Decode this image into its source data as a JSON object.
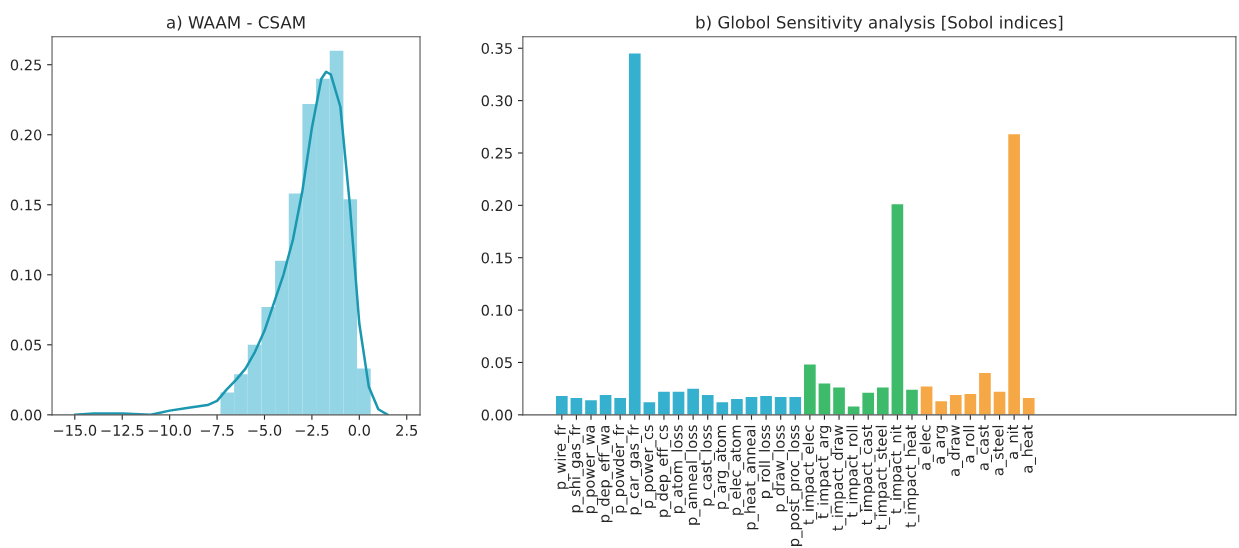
{
  "chart_data": [
    {
      "type": "histogram",
      "title": "a) WAAM - CSAM",
      "bins": [
        -7.32,
        -6.6,
        -5.88,
        -5.16,
        -4.44,
        -3.72,
        -3.0,
        -2.28,
        -1.56,
        -0.84,
        -0.12,
        0.6
      ],
      "values": [
        0.016,
        0.029,
        0.05,
        0.077,
        0.11,
        0.158,
        0.222,
        0.24,
        0.26,
        0.154,
        0.033
      ],
      "color": "#93d5e5",
      "series": [
        {
          "type": "line",
          "color": "#1b98b0",
          "x": [
            -15,
            -14,
            -12.5,
            -11,
            -10,
            -9,
            -8,
            -7.5,
            -7,
            -6.5,
            -6,
            -5.5,
            -5,
            -4.5,
            -4,
            -3.5,
            -3,
            -2.5,
            -2,
            -1.75,
            -1.5,
            -1,
            -0.5,
            0,
            0.5,
            1,
            1.5
          ],
          "values": [
            0,
            0.001,
            0.001,
            0,
            0.003,
            0.005,
            0.007,
            0.01,
            0.018,
            0.025,
            0.033,
            0.045,
            0.06,
            0.08,
            0.1,
            0.125,
            0.16,
            0.205,
            0.24,
            0.245,
            0.243,
            0.22,
            0.15,
            0.065,
            0.02,
            0.004,
            0
          ]
        }
      ],
      "xlim": [
        -16.2,
        3.2
      ],
      "xticks": [
        {
          "value": -15,
          "label": "−15.0"
        },
        {
          "value": -12.5,
          "label": "−12.5"
        },
        {
          "value": -10,
          "label": "−10.0"
        },
        {
          "value": -7.5,
          "label": "−7.5"
        },
        {
          "value": -5,
          "label": "−5.0"
        },
        {
          "value": -2.5,
          "label": "−2.5"
        },
        {
          "value": 0,
          "label": "0.0"
        },
        {
          "value": 2.5,
          "label": "2.5"
        }
      ],
      "ylim": [
        0,
        0.27
      ],
      "yticks": [
        {
          "value": 0,
          "label": "0.00"
        },
        {
          "value": 0.05,
          "label": "0.05"
        },
        {
          "value": 0.1,
          "label": "0.10"
        },
        {
          "value": 0.15,
          "label": "0.15"
        },
        {
          "value": 0.2,
          "label": "0.20"
        },
        {
          "value": 0.25,
          "label": "0.25"
        }
      ],
      "grid": false
    },
    {
      "type": "bar",
      "title": "b) Globol Sensitivity analysis [Sobol indices]",
      "categories": [
        "p_wire_fr",
        "p_shi_gas_fr",
        "p_power_wa",
        "p_dep_eff_wa",
        "p_powder_fr",
        "p_car_gas_fr",
        "p_power_cs",
        "p_dep_eff_cs",
        "p_atom_loss",
        "p_anneal_loss",
        "p_cast_loss",
        "p_arg_atom",
        "p_elec_atom",
        "p_heat_anneal",
        "p_roll_loss",
        "p_draw_loss",
        "p_post_proc_loss",
        "t_impact_elec",
        "t_impact_arg",
        "t_impact_draw",
        "t_impact_roll",
        "t_impact_cast",
        "t_impact_steel",
        "t_impact_nit",
        "t_impact_heat",
        "a_elec",
        "a_arg",
        "a_draw",
        "a_roll",
        "a_cast",
        "a_steel",
        "a_nit",
        "a_heat"
      ],
      "values": [
        0.018,
        0.016,
        0.014,
        0.019,
        0.016,
        0.345,
        0.012,
        0.022,
        0.022,
        0.025,
        0.019,
        0.012,
        0.015,
        0.017,
        0.018,
        0.017,
        0.017,
        0.048,
        0.03,
        0.026,
        0.008,
        0.021,
        0.026,
        0.201,
        0.024,
        0.027,
        0.013,
        0.019,
        0.02,
        0.04,
        0.022,
        0.268,
        0.016
      ],
      "colors": [
        "#35b0cf",
        "#35b0cf",
        "#35b0cf",
        "#35b0cf",
        "#35b0cf",
        "#35b0cf",
        "#35b0cf",
        "#35b0cf",
        "#35b0cf",
        "#35b0cf",
        "#35b0cf",
        "#35b0cf",
        "#35b0cf",
        "#35b0cf",
        "#35b0cf",
        "#35b0cf",
        "#35b0cf",
        "#3dbb6a",
        "#3dbb6a",
        "#3dbb6a",
        "#3dbb6a",
        "#3dbb6a",
        "#3dbb6a",
        "#3dbb6a",
        "#3dbb6a",
        "#f5a845",
        "#f5a845",
        "#f5a845",
        "#f5a845",
        "#f5a845",
        "#f5a845",
        "#f5a845",
        "#f5a845"
      ],
      "ylim": [
        0,
        0.361
      ],
      "yticks": [
        {
          "value": 0,
          "label": "0.00"
        },
        {
          "value": 0.05,
          "label": "0.05"
        },
        {
          "value": 0.1,
          "label": "0.10"
        },
        {
          "value": 0.15,
          "label": "0.15"
        },
        {
          "value": 0.2,
          "label": "0.20"
        },
        {
          "value": 0.25,
          "label": "0.25"
        },
        {
          "value": 0.3,
          "label": "0.30"
        },
        {
          "value": 0.35,
          "label": "0.35"
        }
      ],
      "grid": false
    }
  ]
}
